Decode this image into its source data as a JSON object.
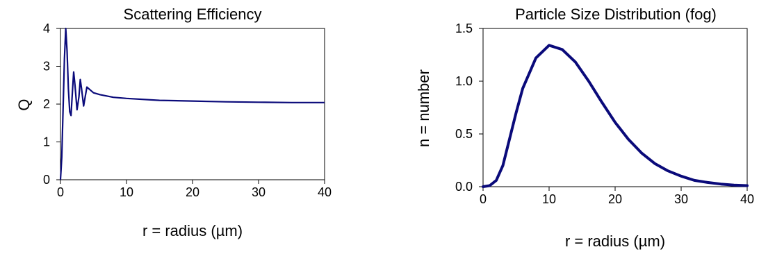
{
  "chart_data": [
    {
      "type": "line",
      "title": "Scattering Efficiency",
      "xlabel": "r = radius (µm)",
      "ylabel": "Q",
      "xlim": [
        0,
        40
      ],
      "ylim": [
        0,
        4
      ],
      "xticks": [
        "0",
        "10",
        "20",
        "30",
        "40"
      ],
      "yticks": [
        "0",
        "1",
        "2",
        "3",
        "4"
      ],
      "grid": false,
      "line_color": "#0a0a7a",
      "series": [
        {
          "x": [
            0,
            0.2,
            0.4,
            0.6,
            0.8,
            1.0,
            1.2,
            1.4,
            1.6,
            1.8,
            2.0,
            2.2,
            2.5,
            2.8,
            3.0,
            3.2,
            3.5,
            4.0,
            5.0,
            6.0,
            8.0,
            10.0,
            15.0,
            20.0,
            25.0,
            30.0,
            35.0,
            40.0
          ],
          "y": [
            0,
            0.6,
            1.9,
            3.2,
            4.0,
            3.4,
            2.4,
            1.8,
            1.7,
            2.3,
            2.85,
            2.5,
            1.85,
            2.2,
            2.65,
            2.4,
            1.95,
            2.45,
            2.3,
            2.25,
            2.18,
            2.15,
            2.1,
            2.08,
            2.06,
            2.05,
            2.04,
            2.04
          ]
        }
      ]
    },
    {
      "type": "line",
      "title": "Particle Size Distribution (fog)",
      "xlabel": "r = radius (µm)",
      "ylabel": "n = number",
      "xlim": [
        0,
        40
      ],
      "ylim": [
        0,
        1.5
      ],
      "xticks": [
        "0",
        "10",
        "20",
        "30",
        "40"
      ],
      "yticks": [
        "0.0",
        "0.5",
        "1.0",
        "1.5"
      ],
      "grid": false,
      "line_color": "#0a0a7a",
      "series": [
        {
          "x": [
            0,
            1,
            2,
            3,
            4,
            5,
            6,
            8,
            10,
            12,
            14,
            16,
            18,
            20,
            22,
            24,
            26,
            28,
            30,
            32,
            34,
            36,
            38,
            40
          ],
          "y": [
            0,
            0.01,
            0.06,
            0.2,
            0.45,
            0.7,
            0.93,
            1.22,
            1.34,
            1.3,
            1.18,
            1.0,
            0.8,
            0.61,
            0.45,
            0.32,
            0.22,
            0.15,
            0.1,
            0.06,
            0.04,
            0.025,
            0.015,
            0.01
          ]
        }
      ]
    }
  ]
}
